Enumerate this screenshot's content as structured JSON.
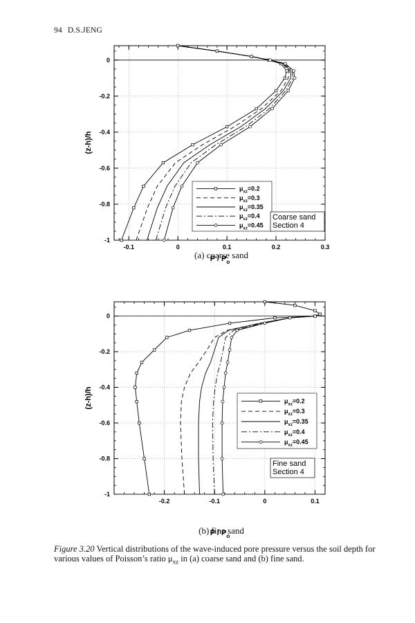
{
  "page": {
    "page_number": "94",
    "running_head": "D.S.JENG",
    "figure_label": "Figure 3.20",
    "caption_before": "Vertical distributions of the wave-induced pore pressure versus the soil depth for various values of Poisson’s ratio μ",
    "caption_sub": "xz",
    "caption_after": " in (a) coarse sand and (b) fine sand."
  },
  "chart_data": [
    {
      "type": "line",
      "subcaption": "(a) coarse sand",
      "xlabel_main": "P / P",
      "xlabel_sub": "o",
      "ylabel": "(z-h)/h",
      "xlim": [
        -0.13,
        0.3
      ],
      "ylim": [
        -1,
        0.08
      ],
      "xticks": [
        -0.1,
        0,
        0.1,
        0.2,
        0.3
      ],
      "xtick_labels": [
        "-0.1",
        "0",
        "0.1",
        "0.2",
        "0.3"
      ],
      "yticks": [
        0,
        -0.2,
        -0.4,
        -0.6,
        -0.8,
        -1
      ],
      "ytick_labels": [
        "0",
        "-0.2",
        "-0.4",
        "-0.6",
        "-0.8",
        "-1"
      ],
      "grid": true,
      "legend_position": "lower-right",
      "annotation": [
        "Coarse sand",
        "Section 4"
      ],
      "series": [
        {
          "name": "μ_xz=0.2",
          "name_base": "μ",
          "name_sub": "xz",
          "name_tail": "=0.2",
          "style": "square-markers",
          "x": [
            -0.115,
            -0.09,
            -0.07,
            -0.03,
            0.03,
            0.1,
            0.16,
            0.2,
            0.218,
            0.222,
            0.21,
            0.185,
            0.15,
            0.08,
            0
          ],
          "y": [
            -1,
            -0.82,
            -0.7,
            -0.57,
            -0.47,
            -0.37,
            -0.27,
            -0.17,
            -0.1,
            -0.06,
            -0.02,
            0,
            0.02,
            0.05,
            0.08
          ]
        },
        {
          "name": "μ_xz=0.3",
          "name_base": "μ",
          "name_sub": "xz",
          "name_tail": "=0.3",
          "style": "dashed",
          "x": [
            -0.085,
            -0.062,
            -0.042,
            -0.005,
            0.05,
            0.115,
            0.17,
            0.21,
            0.225,
            0.227,
            0.213,
            0.185,
            0.15,
            0.08,
            0
          ],
          "y": [
            -1,
            -0.82,
            -0.7,
            -0.57,
            -0.47,
            -0.37,
            -0.27,
            -0.17,
            -0.1,
            -0.06,
            -0.02,
            0,
            0.02,
            0.05,
            0.08
          ]
        },
        {
          "name": "μ_xz=0.35",
          "name_base": "μ",
          "name_sub": "xz",
          "name_tail": "=0.35",
          "style": "solid",
          "x": [
            -0.063,
            -0.042,
            -0.022,
            0.012,
            0.065,
            0.128,
            0.178,
            0.215,
            0.23,
            0.23,
            0.215,
            0.186,
            0.15,
            0.08,
            0
          ],
          "y": [
            -1,
            -0.82,
            -0.7,
            -0.57,
            -0.47,
            -0.37,
            -0.27,
            -0.17,
            -0.1,
            -0.06,
            -0.02,
            0,
            0.02,
            0.05,
            0.08
          ]
        },
        {
          "name": "μ_xz=0.4",
          "name_base": "μ",
          "name_sub": "xz",
          "name_tail": "=0.4",
          "style": "dashdot",
          "x": [
            -0.045,
            -0.025,
            -0.006,
            0.027,
            0.077,
            0.138,
            0.186,
            0.22,
            0.234,
            0.233,
            0.217,
            0.187,
            0.15,
            0.08,
            0
          ],
          "y": [
            -1,
            -0.82,
            -0.7,
            -0.57,
            -0.47,
            -0.37,
            -0.27,
            -0.17,
            -0.1,
            -0.06,
            -0.02,
            0,
            0.02,
            0.05,
            0.08
          ]
        },
        {
          "name": "μ_xz=0.45",
          "name_base": "μ",
          "name_sub": "xz",
          "name_tail": "=0.45",
          "style": "circle-markers",
          "x": [
            -0.028,
            -0.01,
            0.008,
            0.04,
            0.088,
            0.147,
            0.192,
            0.225,
            0.238,
            0.236,
            0.219,
            0.188,
            0.15,
            0.08,
            0
          ],
          "y": [
            -1,
            -0.82,
            -0.7,
            -0.57,
            -0.47,
            -0.37,
            -0.27,
            -0.17,
            -0.1,
            -0.06,
            -0.02,
            0,
            0.02,
            0.05,
            0.08
          ]
        }
      ]
    },
    {
      "type": "line",
      "subcaption": "(b) fine sand",
      "xlabel_main": "P / P",
      "xlabel_sub": "o",
      "ylabel": "(z-h)/h",
      "xlim": [
        -0.3,
        0.12
      ],
      "ylim": [
        -1,
        0.08
      ],
      "xticks": [
        -0.2,
        -0.1,
        0,
        0.1
      ],
      "xtick_labels": [
        "-0.2",
        "-0.1",
        "0",
        "0.1"
      ],
      "yticks": [
        0,
        -0.2,
        -0.4,
        -0.6,
        -0.8,
        -1
      ],
      "ytick_labels": [
        "0",
        "-0.2",
        "-0.4",
        "-0.6",
        "-0.8",
        "-1"
      ],
      "grid": true,
      "legend_position": "right",
      "annotation": [
        "Fine sand",
        "Section 4"
      ],
      "series": [
        {
          "name": "μ_xz=0.2",
          "name_base": "μ",
          "name_sub": "xz",
          "name_tail": "=0.2",
          "style": "square-markers",
          "x": [
            -0.23,
            -0.24,
            -0.25,
            -0.255,
            -0.258,
            -0.255,
            -0.245,
            -0.22,
            -0.195,
            -0.15,
            -0.07,
            0.02,
            0.1,
            0.11,
            0.1,
            0.06,
            0
          ],
          "y": [
            -1,
            -0.8,
            -0.6,
            -0.48,
            -0.4,
            -0.32,
            -0.26,
            -0.19,
            -0.12,
            -0.08,
            -0.04,
            -0.01,
            0,
            0.01,
            0.03,
            0.06,
            0.08
          ]
        },
        {
          "name": "μ_xz=0.3",
          "name_base": "μ",
          "name_sub": "xz",
          "name_tail": "=0.3",
          "style": "dashed",
          "x": [
            -0.16,
            -0.165,
            -0.168,
            -0.166,
            -0.16,
            -0.148,
            -0.132,
            -0.115,
            -0.1,
            -0.075,
            -0.01,
            0.05,
            0.1,
            0.11
          ],
          "y": [
            -1,
            -0.8,
            -0.6,
            -0.48,
            -0.4,
            -0.32,
            -0.26,
            -0.19,
            -0.12,
            -0.08,
            -0.04,
            -0.01,
            0,
            0.01
          ]
        },
        {
          "name": "μ_xz=0.35",
          "name_base": "μ",
          "name_sub": "xz",
          "name_tail": "=0.35",
          "style": "solid",
          "x": [
            -0.13,
            -0.132,
            -0.132,
            -0.13,
            -0.126,
            -0.118,
            -0.108,
            -0.1,
            -0.092,
            -0.072,
            -0.01,
            0.05,
            0.1,
            0.11
          ],
          "y": [
            -1,
            -0.8,
            -0.6,
            -0.48,
            -0.4,
            -0.32,
            -0.26,
            -0.19,
            -0.12,
            -0.08,
            -0.04,
            -0.01,
            0,
            0.01
          ]
        },
        {
          "name": "μ_xz=0.4",
          "name_base": "μ",
          "name_sub": "xz",
          "name_tail": "=0.4",
          "style": "dashdot",
          "x": [
            -0.1,
            -0.103,
            -0.104,
            -0.102,
            -0.099,
            -0.094,
            -0.088,
            -0.083,
            -0.078,
            -0.062,
            -0.005,
            0.05,
            0.1,
            0.11
          ],
          "y": [
            -1,
            -0.8,
            -0.6,
            -0.48,
            -0.4,
            -0.32,
            -0.26,
            -0.19,
            -0.12,
            -0.08,
            -0.04,
            -0.01,
            0,
            0.01
          ]
        },
        {
          "name": "μ_xz=0.45",
          "name_base": "μ",
          "name_sub": "xz",
          "name_tail": "=0.45",
          "style": "circle-markers",
          "x": [
            -0.083,
            -0.085,
            -0.085,
            -0.084,
            -0.081,
            -0.078,
            -0.074,
            -0.07,
            -0.066,
            -0.055,
            0,
            0.05,
            0.1,
            0.11
          ],
          "y": [
            -1,
            -0.8,
            -0.6,
            -0.48,
            -0.4,
            -0.32,
            -0.26,
            -0.19,
            -0.12,
            -0.08,
            -0.04,
            -0.01,
            0,
            0.01
          ]
        }
      ]
    }
  ]
}
